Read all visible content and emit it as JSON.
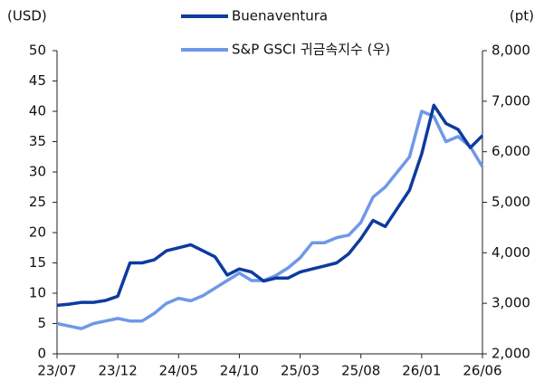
{
  "chart_data": {
    "type": "line",
    "y_label": "(USD)",
    "y2_label": "(pt)",
    "categories": [
      "23/07",
      null,
      null,
      null,
      null,
      "23/12",
      null,
      null,
      null,
      null,
      "24/05",
      null,
      null,
      null,
      null,
      "24/10",
      null,
      null,
      null,
      null,
      "25/03",
      null,
      null,
      null,
      null,
      "25/08",
      null,
      null,
      null,
      null,
      "26/01",
      null,
      null,
      null,
      null,
      "26/06"
    ],
    "series": [
      {
        "name": "Buenaventura",
        "color": "#0d3b9e",
        "axis": "y",
        "values": [
          8,
          8.2,
          8.5,
          8.5,
          8.8,
          9.5,
          15,
          15,
          15.5,
          17,
          17.5,
          18,
          17,
          16,
          13,
          14,
          13.5,
          12,
          12.5,
          12.5,
          13.5,
          14,
          14.5,
          15,
          16.5,
          19,
          22,
          21,
          24,
          27,
          33,
          41,
          38,
          37,
          34,
          36
        ]
      },
      {
        "name": "S&P GSCI 귀금속지수 (우)",
        "color": "#6f98e8",
        "axis": "y2",
        "values": [
          2600,
          2550,
          2500,
          2600,
          2650,
          2700,
          2650,
          2650,
          2800,
          3000,
          3100,
          3050,
          3150,
          3300,
          3450,
          3600,
          3450,
          3450,
          3550,
          3700,
          3900,
          4200,
          4200,
          4300,
          4350,
          4600,
          5100,
          5300,
          5600,
          5900,
          6800,
          6700,
          6200,
          6300,
          6100,
          5700
        ]
      }
    ],
    "ylim": [
      0,
      50
    ],
    "yticks": [
      0,
      5,
      10,
      15,
      20,
      25,
      30,
      35,
      40,
      45,
      50
    ],
    "y2lim": [
      2000,
      8000
    ],
    "y2ticks": [
      {
        "value": 2000,
        "label": "2,000"
      },
      {
        "value": 3000,
        "label": "3,000"
      },
      {
        "value": 4000,
        "label": "4,000"
      },
      {
        "value": 5000,
        "label": "5,000"
      },
      {
        "value": 6000,
        "label": "6,000"
      },
      {
        "value": 7000,
        "label": "7,000"
      },
      {
        "value": 8000,
        "label": "8,000"
      }
    ],
    "legend": "top"
  }
}
